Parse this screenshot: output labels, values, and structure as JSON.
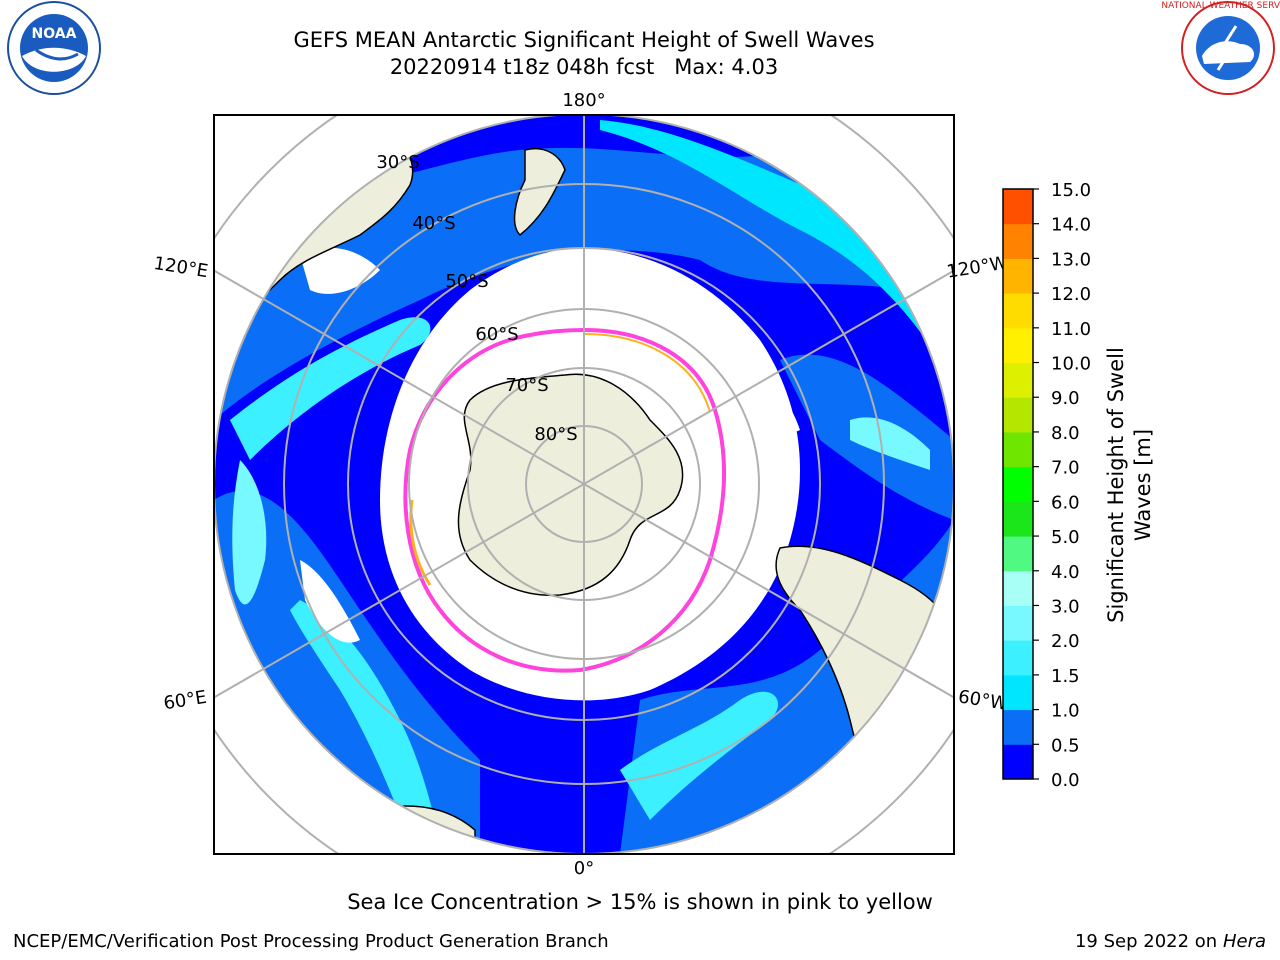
{
  "header": {
    "title_line1": "GEFS MEAN Antarctic Significant Height of Swell Waves",
    "date_label": "20220914 t18z 048h fcst",
    "max_label": "Max: 4.03"
  },
  "logos": {
    "noaa": {
      "text": "NOAA",
      "ring_text": "NATIONAL OCEANIC AND ATMOSPHERIC ADMINISTRATION • U.S. DEPARTMENT OF COMMERCE"
    },
    "nws": {
      "ring_text": "NATIONAL WEATHER SERVICE"
    }
  },
  "map": {
    "projection": "south-polar-stereographic",
    "lon_labels": [
      "180°",
      "120°E",
      "120°W",
      "60°E",
      "60°W",
      "0°"
    ],
    "lat_labels": [
      "30°S",
      "40°S",
      "50°S",
      "60°S",
      "70°S",
      "80°S"
    ],
    "ice_note": "Sea Ice Concentration > 15% is shown in pink to yellow"
  },
  "colorbar": {
    "label": "Significant Height of Swell Waves [m]",
    "ticks": [
      "0.0",
      "0.5",
      "1.0",
      "1.5",
      "2.0",
      "3.0",
      "4.0",
      "5.0",
      "6.0",
      "7.0",
      "8.0",
      "9.0",
      "10.0",
      "11.0",
      "12.0",
      "13.0",
      "14.0",
      "15.0"
    ],
    "colors": [
      "#0000ff",
      "#0a6ef6",
      "#00e6ff",
      "#3cf0ff",
      "#78f8ff",
      "#a8fff5",
      "#50fa82",
      "#1ae61a",
      "#00ff00",
      "#6ee600",
      "#b4e600",
      "#dcf000",
      "#fff000",
      "#ffdc00",
      "#ffb400",
      "#ff8200",
      "#ff5000",
      "#ff2000",
      "#ff0000"
    ]
  },
  "chart_data": {
    "type": "heatmap",
    "title": "GEFS MEAN Antarctic Significant Height of Swell Waves",
    "subtitle": "20220914 t18z 048h fcst   Max: 4.03",
    "variable": "Significant Height of Swell Waves [m]",
    "max": 4.03,
    "range": [
      0.0,
      15.0
    ]
  },
  "footer": {
    "left": "NCEP/EMC/Verification Post Processing Product Generation Branch",
    "date": "19 Sep 2022 on",
    "machine": "Hera"
  }
}
